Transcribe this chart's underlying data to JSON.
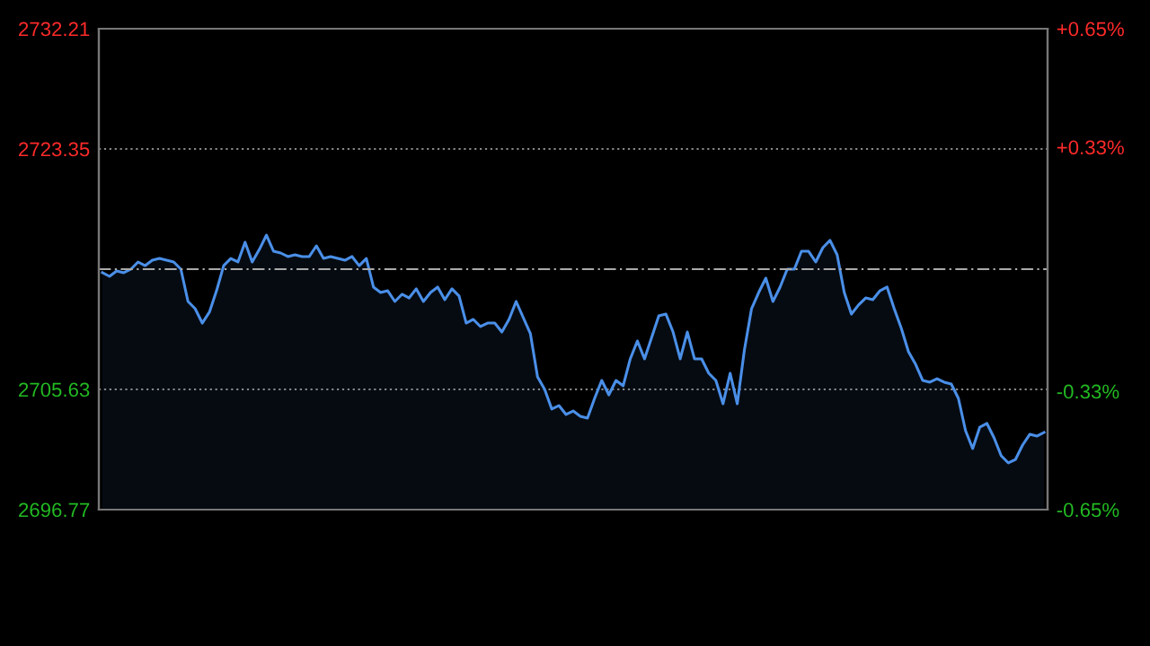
{
  "chart_data": {
    "type": "area",
    "categories": [
      null,
      null,
      null,
      null,
      null,
      null,
      null,
      null,
      null,
      null,
      null,
      null,
      null,
      null,
      null,
      null,
      null,
      null,
      null,
      null,
      null,
      null,
      null,
      null,
      null,
      null,
      null,
      null,
      null,
      null,
      null,
      null,
      null,
      null,
      null,
      null,
      null,
      null,
      null,
      null,
      null,
      null,
      null,
      null,
      null,
      null,
      null,
      null,
      null,
      null,
      null,
      null,
      null,
      null,
      null,
      null,
      null,
      null,
      null,
      null,
      null,
      null,
      null,
      null,
      null,
      null,
      null,
      null,
      null,
      null,
      null,
      null,
      null,
      null,
      null,
      null,
      null,
      null,
      null,
      null,
      null,
      null,
      null,
      null,
      null,
      null,
      null,
      null,
      null,
      null,
      null,
      null,
      null,
      null,
      null,
      null,
      null,
      null,
      null,
      null,
      null,
      null,
      null,
      null,
      null,
      null,
      null,
      null,
      null,
      null,
      null,
      null,
      null,
      null,
      null,
      null,
      null,
      null,
      null,
      null,
      null,
      null,
      null,
      null,
      null,
      null,
      null,
      null,
      null,
      null,
      null,
      null,
      null
    ],
    "series": [
      {
        "color": "#4a8fe8",
        "values": [
          2714.23,
          2713.96,
          2714.36,
          2714.23,
          2714.49,
          2715.02,
          2714.75,
          2715.15,
          2715.28,
          2715.15,
          2715.02,
          2714.49,
          2712.11,
          2711.58,
          2710.52,
          2711.32,
          2712.9,
          2714.75,
          2715.28,
          2715.02,
          2716.47,
          2715.02,
          2715.94,
          2717.0,
          2715.81,
          2715.68,
          2715.42,
          2715.55,
          2715.42,
          2715.42,
          2716.21,
          2715.28,
          2715.42,
          2715.28,
          2715.15,
          2715.42,
          2714.75,
          2715.28,
          2713.17,
          2712.77,
          2712.9,
          2712.11,
          2712.64,
          2712.37,
          2713.04,
          2712.11,
          2712.77,
          2713.17,
          2712.24,
          2713.04,
          2712.51,
          2710.52,
          2710.79,
          2710.26,
          2710.52,
          2710.52,
          2709.86,
          2710.79,
          2712.11,
          2710.92,
          2709.73,
          2706.56,
          2705.63,
          2704.18,
          2704.44,
          2703.78,
          2704.04,
          2703.65,
          2703.51,
          2704.97,
          2706.29,
          2705.23,
          2706.29,
          2705.89,
          2707.88,
          2709.2,
          2707.88,
          2709.47,
          2711.05,
          2711.18,
          2709.86,
          2707.88,
          2709.86,
          2707.88,
          2707.88,
          2706.82,
          2706.29,
          2704.57,
          2706.82,
          2704.57,
          2708.54,
          2711.58,
          2712.77,
          2713.83,
          2712.11,
          2713.17,
          2714.49,
          2714.49,
          2715.81,
          2715.81,
          2715.02,
          2716.08,
          2716.61,
          2715.55,
          2712.77,
          2711.18,
          2711.85,
          2712.37,
          2712.24,
          2712.9,
          2713.17,
          2711.58,
          2710.13,
          2708.41,
          2707.48,
          2706.29,
          2706.16,
          2706.42,
          2706.16,
          2706.03,
          2704.97,
          2702.59,
          2701.27,
          2702.85,
          2703.12,
          2702.06,
          2700.74,
          2700.21,
          2700.47,
          2701.53,
          2702.32,
          2702.19,
          2702.46
        ]
      }
    ],
    "ylim": [
      2696.77,
      2732.21
    ],
    "yticks": [
      2696.77,
      2705.63,
      2723.35,
      2732.21
    ],
    "y2lim": [
      -0.65,
      0.65
    ],
    "y2ticks": [
      {
        "value": -0.65,
        "label": "-0.65%"
      },
      {
        "value": -0.33,
        "label": "-0.33%"
      },
      {
        "value": 0.33,
        "label": "+0.33%"
      },
      {
        "value": 0.65,
        "label": "+0.65%"
      }
    ],
    "ref_lines": [
      {
        "axis": "y",
        "value": 2714.49,
        "line_style": "dashed",
        "color": "#aaaaaa"
      }
    ],
    "grid": "y"
  }
}
